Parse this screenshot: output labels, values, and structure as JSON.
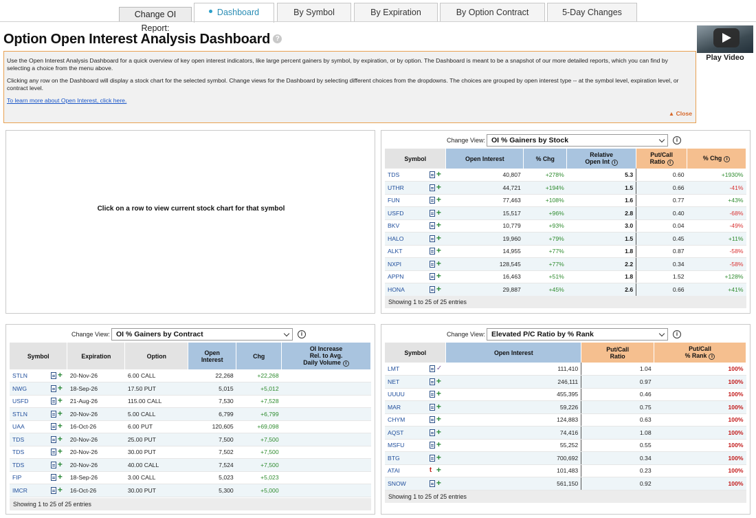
{
  "nav": {
    "report_label": "Change OI Report:",
    "tabs": [
      {
        "label": "Dashboard",
        "active": true
      },
      {
        "label": "By Symbol"
      },
      {
        "label": "By Expiration"
      },
      {
        "label": "By Option Contract"
      },
      {
        "label": "5-Day Changes"
      }
    ]
  },
  "page": {
    "title": "Option Open Interest Analysis Dashboard",
    "help_glyph": "?",
    "video_label": "Play Video"
  },
  "intro": {
    "p1": "Use the Open Interest Analysis Dashboard for a quick overview of key open interest indicators, like large percent gainers by symbol, by expiration, or by option. The Dashboard is meant to be a snapshot of our more detailed reports, which you can find by selecting a choice from the menu above.",
    "p2": "Clicking any row on the Dashboard will display a stock chart for the selected symbol. Change views for the Dashboard by selecting different choices from the dropdowns. The choices are grouped by open interest type -- at the symbol level, expiration level, or contract level.",
    "link": "To learn more about Open Interest, click here.",
    "close": "▲ Close"
  },
  "chart_area": {
    "message": "Click on a row to view current stock chart for that symbol"
  },
  "common": {
    "change_view": "Change View:",
    "info": "i"
  },
  "panel1": {
    "view": "OI % Gainers by Stock",
    "headers": {
      "symbol": "Symbol",
      "oi": "Open Interest",
      "chg": "% Chg",
      "rel1": "Relative",
      "rel2": "Open Int",
      "pc1": "Put/Call",
      "pc2": "Ratio",
      "pcchg": "% Chg"
    },
    "rows": [
      {
        "symbol": "TDS",
        "oi": "40,807",
        "chg": "+278%",
        "rel": "5.3",
        "pc": "0.60",
        "pcchg": "+1930%",
        "up": true
      },
      {
        "symbol": "UTHR",
        "oi": "44,721",
        "chg": "+194%",
        "rel": "1.5",
        "pc": "0.66",
        "pcchg": "-41%",
        "up": false
      },
      {
        "symbol": "FUN",
        "oi": "77,463",
        "chg": "+108%",
        "rel": "1.6",
        "pc": "0.77",
        "pcchg": "+43%",
        "up": true
      },
      {
        "symbol": "USFD",
        "oi": "15,517",
        "chg": "+96%",
        "rel": "2.8",
        "pc": "0.40",
        "pcchg": "-68%",
        "up": false
      },
      {
        "symbol": "BKV",
        "oi": "10,779",
        "chg": "+93%",
        "rel": "3.0",
        "pc": "0.04",
        "pcchg": "-49%",
        "up": false
      },
      {
        "symbol": "HALO",
        "oi": "19,960",
        "chg": "+79%",
        "rel": "1.5",
        "pc": "0.45",
        "pcchg": "+11%",
        "up": true
      },
      {
        "symbol": "ALKT",
        "oi": "14,955",
        "chg": "+77%",
        "rel": "1.8",
        "pc": "0.87",
        "pcchg": "-58%",
        "up": false
      },
      {
        "symbol": "NXPI",
        "oi": "128,545",
        "chg": "+77%",
        "rel": "2.2",
        "pc": "0.34",
        "pcchg": "-58%",
        "up": false
      },
      {
        "symbol": "APPN",
        "oi": "16,463",
        "chg": "+51%",
        "rel": "1.8",
        "pc": "1.52",
        "pcchg": "+128%",
        "up": true
      },
      {
        "symbol": "HONA",
        "oi": "29,887",
        "chg": "+45%",
        "rel": "2.6",
        "pc": "0.66",
        "pcchg": "+41%",
        "up": true
      }
    ],
    "footer": "Showing 1 to 25 of 25 entries"
  },
  "panel2": {
    "view": "OI % Gainers by Contract",
    "headers": {
      "symbol": "Symbol",
      "exp": "Expiration",
      "option": "Option",
      "oi1": "Open",
      "oi2": "Interest",
      "chg": "Chg",
      "inc1": "OI Increase",
      "inc2": "Rel. to Avg.",
      "inc3": "Daily Volume"
    },
    "rows": [
      {
        "symbol": "STLN",
        "exp": "20-Nov-26",
        "option": "6.00 CALL",
        "oi": "22,268",
        "chg": "+22,268"
      },
      {
        "symbol": "NWG",
        "exp": "18-Sep-26",
        "option": "17.50 PUT",
        "oi": "5,015",
        "chg": "+5,012"
      },
      {
        "symbol": "USFD",
        "exp": "21-Aug-26",
        "option": "115.00 CALL",
        "oi": "7,530",
        "chg": "+7,528"
      },
      {
        "symbol": "STLN",
        "exp": "20-Nov-26",
        "option": "5.00 CALL",
        "oi": "6,799",
        "chg": "+6,799"
      },
      {
        "symbol": "UAA",
        "exp": "16-Oct-26",
        "option": "6.00 PUT",
        "oi": "120,605",
        "chg": "+69,098"
      },
      {
        "symbol": "TDS",
        "exp": "20-Nov-26",
        "option": "25.00 PUT",
        "oi": "7,500",
        "chg": "+7,500"
      },
      {
        "symbol": "TDS",
        "exp": "20-Nov-26",
        "option": "30.00 PUT",
        "oi": "7,502",
        "chg": "+7,500"
      },
      {
        "symbol": "TDS",
        "exp": "20-Nov-26",
        "option": "40.00 CALL",
        "oi": "7,524",
        "chg": "+7,500"
      },
      {
        "symbol": "FIP",
        "exp": "18-Sep-26",
        "option": "3.00 CALL",
        "oi": "5,023",
        "chg": "+5,023"
      },
      {
        "symbol": "IMCR",
        "exp": "16-Oct-26",
        "option": "30.00 PUT",
        "oi": "5,300",
        "chg": "+5,000"
      }
    ],
    "footer": "Showing 1 to 25 of 25 entries"
  },
  "panel3": {
    "view": "Elevated P/C Ratio by % Rank",
    "headers": {
      "symbol": "Symbol",
      "oi": "Open Interest",
      "pc1": "Put/Call",
      "pc2": "Ratio",
      "rank1": "Put/Call",
      "rank2": "% Rank"
    },
    "rows": [
      {
        "symbol": "LMT",
        "oi": "111,410",
        "pc": "1.04",
        "rank": "100%",
        "icon": "check"
      },
      {
        "symbol": "NET",
        "oi": "246,111",
        "pc": "0.97",
        "rank": "100%",
        "icon": "plus"
      },
      {
        "symbol": "UUUU",
        "oi": "455,395",
        "pc": "0.46",
        "rank": "100%",
        "icon": "plus"
      },
      {
        "symbol": "MAR",
        "oi": "59,226",
        "pc": "0.75",
        "rank": "100%",
        "icon": "plus"
      },
      {
        "symbol": "CHYM",
        "oi": "124,883",
        "pc": "0.63",
        "rank": "100%",
        "icon": "plus"
      },
      {
        "symbol": "AQST",
        "oi": "74,416",
        "pc": "1.08",
        "rank": "100%",
        "icon": "plus"
      },
      {
        "symbol": "MSFU",
        "oi": "55,252",
        "pc": "0.55",
        "rank": "100%",
        "icon": "plus"
      },
      {
        "symbol": "BTG",
        "oi": "700,692",
        "pc": "0.34",
        "rank": "100%",
        "icon": "plus"
      },
      {
        "symbol": "ATAI",
        "oi": "101,483",
        "pc": "0.23",
        "rank": "100%",
        "icon": "tee"
      },
      {
        "symbol": "SNOW",
        "oi": "561,150",
        "pc": "0.92",
        "rank": "100%",
        "icon": "plus"
      }
    ],
    "footer": "Showing 1 to 25 of 25 entries"
  }
}
